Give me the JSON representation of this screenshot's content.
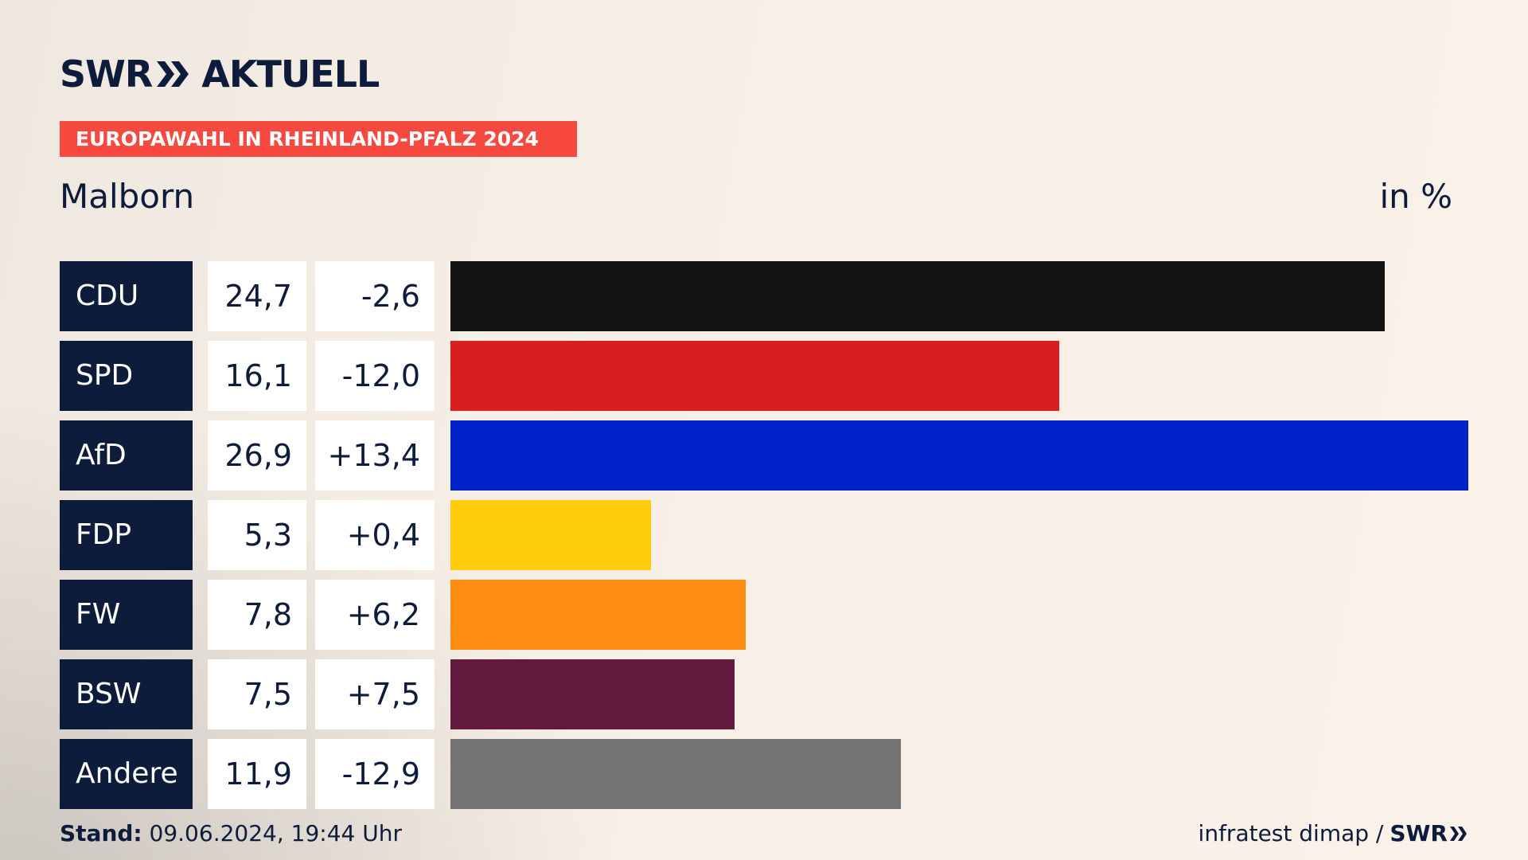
{
  "brand": {
    "name": "SWR",
    "product": "AKTUELL"
  },
  "subtitle": "EUROPAWAHL IN RHEINLAND-PFALZ 2024",
  "region": "Malborn",
  "unit": "in %",
  "chart_data": {
    "type": "bar",
    "orientation": "horizontal",
    "categories": [
      "CDU",
      "SPD",
      "AfD",
      "FDP",
      "FW",
      "BSW",
      "Andere"
    ],
    "values": [
      24.7,
      16.1,
      26.9,
      5.3,
      7.8,
      7.5,
      11.9
    ],
    "value_labels": [
      "24,7",
      "16,1",
      "26,9",
      "5,3",
      "7,8",
      "7,5",
      "11,9"
    ],
    "changes": [
      -2.6,
      -12.0,
      13.4,
      0.4,
      6.2,
      7.5,
      -12.9
    ],
    "change_labels": [
      "-2,6",
      "-12,0",
      "+13,4",
      "+0,4",
      "+6,2",
      "+7,5",
      "-12,9"
    ],
    "colors": [
      "#141414",
      "#d71f1f",
      "#0021c8",
      "#ffcc0a",
      "#ff8c14",
      "#631a3f",
      "#737373"
    ],
    "title": "",
    "xlabel": "",
    "ylabel": "",
    "xlim": [
      0,
      26.9
    ],
    "grid": false,
    "legend": "none"
  },
  "footer": {
    "stand_label": "Stand:",
    "stand_value": "09.06.2024, 19:44 Uhr",
    "source": "infratest dimap /",
    "source_logo": "SWR"
  }
}
